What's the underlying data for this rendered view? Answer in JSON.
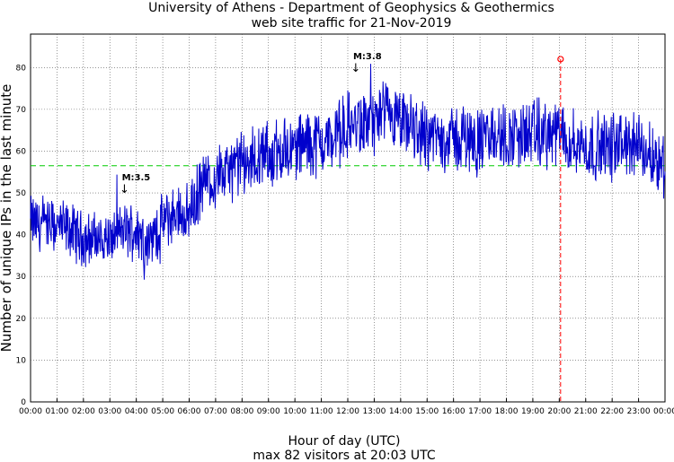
{
  "chart_data": {
    "type": "line",
    "title": "University of Athens - Department of Geophysics & Geothermics",
    "subtitle": "web site traffic for 21-Nov-2019",
    "xlabel": "Hour of day (UTC)",
    "xlabel_sub": "max 82 visitors at 20:03 UTC",
    "ylabel": "Number of unique IPs in the last minute",
    "xlim": [
      0,
      24
    ],
    "ylim": [
      0,
      88
    ],
    "grid": true,
    "x_tick_labels": [
      "00:00",
      "01:00",
      "02:00",
      "03:00",
      "04:00",
      "05:00",
      "06:00",
      "07:00",
      "08:00",
      "09:00",
      "10:00",
      "11:00",
      "12:00",
      "13:00",
      "14:00",
      "15:00",
      "16:00",
      "17:00",
      "18:00",
      "19:00",
      "20:00",
      "21:00",
      "22:00",
      "23:00",
      "00:00"
    ],
    "y_ticks": [
      0,
      10,
      20,
      30,
      40,
      50,
      60,
      70,
      80
    ],
    "mean_line": 56.5,
    "max_marker": {
      "hour": 20.05,
      "value": 82,
      "label_time": "20:03"
    },
    "annotations": [
      {
        "label": "M:3.5",
        "hour": 3.55,
        "value": 50
      },
      {
        "label": "M:3.8",
        "hour": 12.3,
        "value": 79
      }
    ],
    "series": [
      {
        "x": [
          0,
          0.5,
          1,
          1.5,
          2,
          2.5,
          3,
          3.5,
          4,
          4.5,
          5,
          5.5,
          6,
          6.5,
          7,
          7.5,
          8,
          8.5,
          9,
          9.5,
          10,
          10.5,
          11,
          11.5,
          12,
          12.5,
          13,
          13.5,
          14,
          14.5,
          15,
          15.5,
          16,
          16.5,
          17,
          17.5,
          18,
          18.5,
          19,
          19.5,
          20,
          20.5,
          21,
          21.5,
          22,
          22.5,
          23,
          23.5,
          24
        ],
        "values": [
          43,
          42,
          42,
          41,
          39,
          39,
          39,
          41,
          41,
          38,
          43,
          45,
          45,
          52,
          54,
          55,
          57,
          58,
          59,
          60,
          61,
          62,
          62,
          63,
          66,
          66,
          67,
          68,
          66,
          65,
          64,
          63,
          63,
          63,
          62,
          64,
          63,
          64,
          64,
          64,
          64,
          62,
          61,
          61,
          61,
          62,
          61,
          59,
          57
        ]
      }
    ],
    "colors": {
      "series": "#0000cc",
      "mean": "#00cc00",
      "max": "#ff0000",
      "grid": "#555555"
    }
  }
}
